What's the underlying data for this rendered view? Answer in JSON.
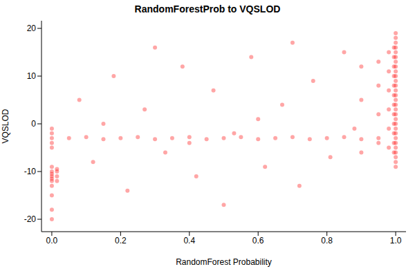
{
  "chart_data": {
    "type": "scatter",
    "title": "RandomForestProb to VQSLOD",
    "x_label": "RandomForest Probability",
    "y_label": "VQSLOD",
    "xlim": [
      -0.03,
      1.03
    ],
    "ylim": [
      -22.6,
      21.6
    ],
    "xticks": [
      {
        "value": 0,
        "label": "0.0"
      },
      0.2,
      0.4,
      0.6,
      0.8,
      {
        "value": 1,
        "label": "1.0"
      }
    ],
    "yticks": [
      -20,
      -10,
      0,
      10,
      20
    ],
    "grid": false,
    "series": [
      {
        "name": "VQSLOD",
        "color": "#ff0000",
        "marker": "circle",
        "x": [
          1,
          1,
          1,
          1,
          1,
          1,
          1,
          1,
          1,
          1,
          1,
          1,
          1,
          1,
          1,
          1,
          1,
          1,
          1,
          1,
          1,
          1,
          1,
          1,
          1,
          1,
          1,
          1,
          1,
          0.995,
          0.995,
          0.995,
          0.995,
          0.995,
          0.995,
          0.995,
          0.995,
          0.995,
          0.995,
          0.995,
          0.995,
          0.98,
          0.98,
          0.98,
          0.98,
          0.98,
          0.98,
          0.95,
          0.95,
          0.95,
          0.95,
          0.9,
          0.9,
          0.9,
          0.05,
          0.1,
          0.15,
          0.2,
          0.25,
          0.3,
          0.35,
          0.4,
          0.45,
          0.5,
          0.55,
          0.6,
          0.65,
          0.7,
          0.75,
          0.8,
          0.85,
          0.9,
          0.95,
          0.08,
          0.12,
          0.18,
          0.22,
          0.27,
          0.33,
          0.38,
          0.42,
          0.47,
          0.53,
          0.58,
          0.62,
          0.67,
          0.72,
          0.76,
          0.81,
          0.85,
          0.88,
          0.15,
          0.5,
          0.3,
          0.7,
          0.6,
          0.4,
          0,
          0,
          0,
          0,
          0,
          0,
          0,
          0,
          0,
          0,
          0,
          0,
          0,
          0,
          0,
          0.015,
          0.015,
          0.015,
          0.015
        ],
        "values": [
          -9,
          -8,
          -7,
          -6,
          -5,
          -4,
          -3,
          -2,
          -1,
          0,
          1,
          2,
          3,
          4,
          5,
          6,
          7,
          8,
          9,
          10,
          11,
          12,
          13,
          14,
          15,
          16,
          17,
          18,
          19,
          -6,
          -4,
          -2,
          0,
          2,
          4,
          6,
          8,
          10,
          12,
          14,
          16,
          -5,
          -1,
          3,
          7,
          11,
          15,
          -4,
          2,
          8,
          13,
          -6,
          5,
          12,
          -3,
          -2.8,
          -3.2,
          -3,
          -2.8,
          -3.2,
          -3,
          -2.8,
          -3.2,
          -3,
          -2.8,
          -3.2,
          -3,
          -2.8,
          -3.2,
          -3,
          -2.8,
          -3.2,
          -3,
          5,
          -8,
          10,
          -14,
          3,
          -6,
          12,
          -11,
          7,
          -2,
          14,
          -9,
          4,
          -13,
          9,
          -7,
          15,
          -1,
          0,
          -17,
          16,
          17,
          1,
          -4,
          -20,
          -18,
          -15,
          -13,
          -12,
          -11.5,
          -11,
          -10.5,
          -10,
          -9,
          -5,
          -4,
          -3,
          -2,
          -1,
          -12,
          -11,
          -10,
          -9.5
        ]
      }
    ]
  }
}
